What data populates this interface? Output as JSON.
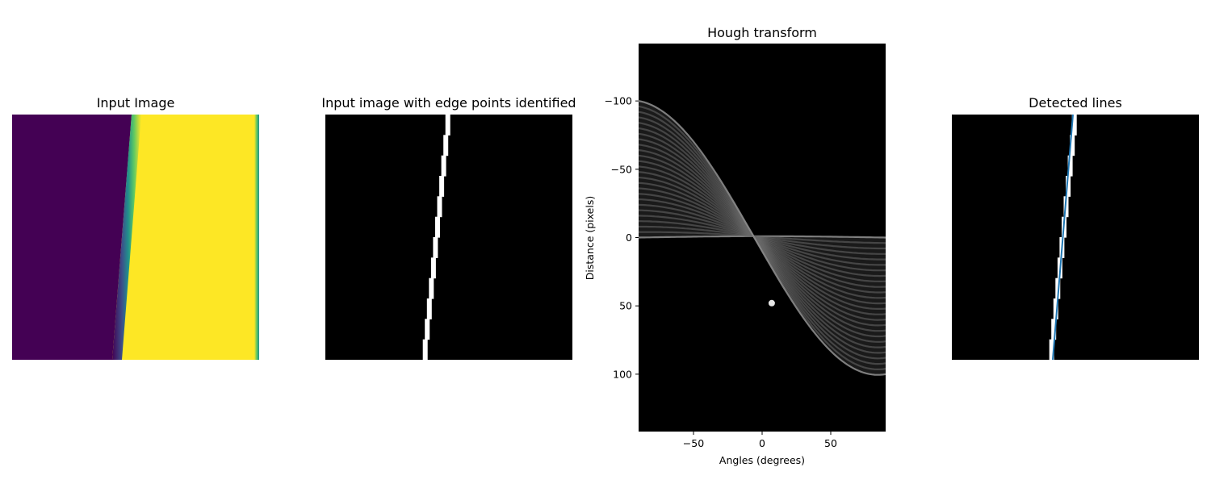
{
  "chart_data": [
    {
      "type": "heatmap",
      "title": "Input Image",
      "axis": "off",
      "grid": false,
      "colormap": "viridis",
      "description_values": {
        "rows": 100,
        "cols": 100,
        "low_value_color": "#440154",
        "high_value_color": "#fde725",
        "edge_x_top": 52,
        "edge_x_bottom": 42
      },
      "colors": {
        "low": "#440154",
        "edge": "#21918c",
        "high": "#fde725"
      }
    },
    {
      "type": "heatmap",
      "title": "Input image with edge points identified",
      "axis": "off",
      "grid": false,
      "colormap": "gray",
      "edge_points": {
        "x_top": 50,
        "x_bottom": 40,
        "rows": 100
      },
      "colors": {
        "background": "#000000",
        "edge": "#ffffff"
      }
    },
    {
      "type": "heatmap",
      "title": "Hough transform",
      "xlabel": "Angles (degrees)",
      "ylabel": "Distance (pixels)",
      "xlim": [
        -90,
        90
      ],
      "ylim": [
        142,
        -142
      ],
      "xticks": [
        -50,
        0,
        50
      ],
      "yticks": [
        -100,
        -50,
        0,
        50,
        100
      ],
      "xtick_labels": [
        "−50",
        "0",
        "50"
      ],
      "ytick_labels": [
        "−100",
        "−50",
        "0",
        "50",
        "100"
      ],
      "peak": {
        "angle": 7,
        "distance": 48
      },
      "sinusoid_band": {
        "x_min": -1,
        "x_max": 10,
        "y_min": 0,
        "y_max": 100
      },
      "grid": false,
      "colormap": "gray"
    },
    {
      "type": "heatmap",
      "title": "Detected lines",
      "axis": "off",
      "grid": false,
      "colormap": "gray",
      "detected_line": {
        "angle": 7,
        "distance": 48,
        "x_top": 50,
        "x_bottom": 40
      },
      "colors": {
        "background": "#000000",
        "edge": "#ffffff",
        "line": "#1f77b4"
      }
    }
  ]
}
